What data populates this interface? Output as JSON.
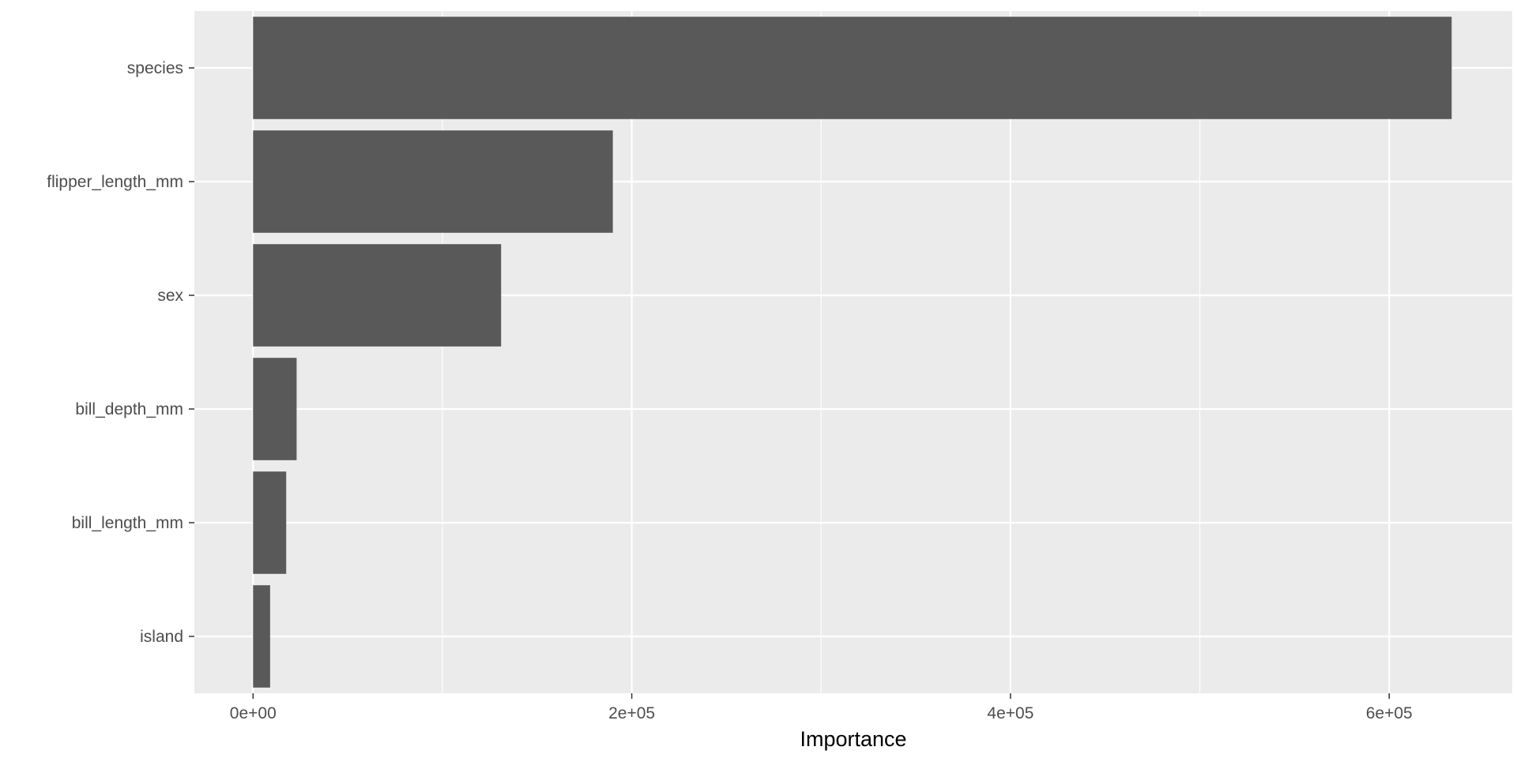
{
  "chart_data": {
    "type": "bar",
    "orientation": "horizontal",
    "categories": [
      "species",
      "flipper_length_mm",
      "sex",
      "bill_depth_mm",
      "bill_length_mm",
      "island"
    ],
    "values": [
      633000,
      190000,
      131000,
      23000,
      17500,
      9000
    ],
    "xlabel": "Importance",
    "ylabel": "",
    "xlim": [
      -31000,
      665000
    ],
    "x_ticks": [
      0,
      200000,
      400000,
      600000
    ],
    "x_tick_labels": [
      "0e+00",
      "2e+05",
      "4e+05",
      "6e+05"
    ],
    "grid": true,
    "colors": {
      "panel_background": "#ebebeb",
      "grid_line": "#ffffff",
      "bar_fill": "#595959",
      "tick_text": "#4d4d4d",
      "tick_mark": "#333333"
    }
  }
}
